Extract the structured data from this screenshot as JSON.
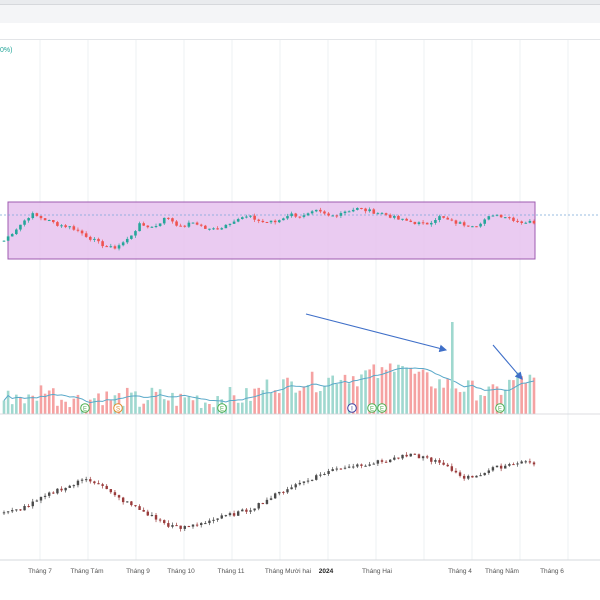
{
  "header": {
    "percent_label": "0%)"
  },
  "colors": {
    "up": "#26a69a",
    "down": "#ef5350",
    "range_fill": "#e7c3ef",
    "range_stroke": "#8e3fa3",
    "volume_up": "#9fd8cf",
    "volume_down": "#f5a2a2",
    "volume_ma": "#5aa9c9",
    "arrow": "#3f6fc8",
    "last_price_line": "#7aa7d8",
    "grid": "#eef0f3"
  },
  "chart_data": [
    {
      "type": "candlestick",
      "panel": "price",
      "x_labels": [
        "Tháng 7",
        "Tháng Tám",
        "Tháng 9",
        "Tháng 10",
        "Tháng 11",
        "Tháng Mười hai",
        "2024",
        "Tháng Hai",
        "Tháng 4",
        "Tháng Năm",
        "Tháng 6"
      ],
      "series_shape": [
        48,
        53,
        58,
        56,
        54,
        53,
        50,
        47,
        45,
        48,
        54,
        53,
        57,
        53,
        55,
        52,
        53,
        56,
        57,
        55,
        55,
        58,
        57,
        59,
        57,
        59,
        60,
        59,
        58,
        56,
        55,
        54,
        57,
        55,
        54,
        54,
        58,
        57,
        55,
        55
      ],
      "range_box": {
        "label": "",
        "covers": "Tháng 7 – Tháng 6"
      },
      "grid": false
    },
    {
      "type": "bar",
      "panel": "volume",
      "values_relative": [
        0.25,
        0.35,
        0.22,
        0.5,
        0.28,
        0.3,
        0.2,
        0.35,
        0.25,
        0.3,
        0.22,
        0.33,
        0.28,
        0.25,
        0.3,
        0.2,
        0.35,
        0.28,
        0.3,
        0.45,
        0.55,
        0.5,
        0.6,
        0.55,
        0.62,
        0.7,
        0.65,
        0.72,
        0.68,
        1.0,
        0.7,
        0.6,
        0.55,
        0.5,
        0.45,
        0.4,
        0.35,
        0.5,
        0.65,
        0.55
      ],
      "markers": [
        "E",
        "S",
        "E",
        "I",
        "E",
        "E",
        "E"
      ],
      "moving_average": true,
      "annotations": [
        "arrow-to-peak",
        "arrow-to-recent-spike"
      ]
    },
    {
      "type": "candlestick",
      "panel": "index",
      "series_shape": [
        36,
        38,
        41,
        45,
        49,
        51,
        55,
        52,
        46,
        42,
        38,
        34,
        30,
        28,
        30,
        32,
        34,
        36,
        38,
        42,
        46,
        50,
        53,
        56,
        59,
        61,
        62,
        63,
        64,
        66,
        67,
        66,
        63,
        59,
        55,
        57,
        60,
        62,
        64,
        63
      ],
      "grid": false
    }
  ]
}
